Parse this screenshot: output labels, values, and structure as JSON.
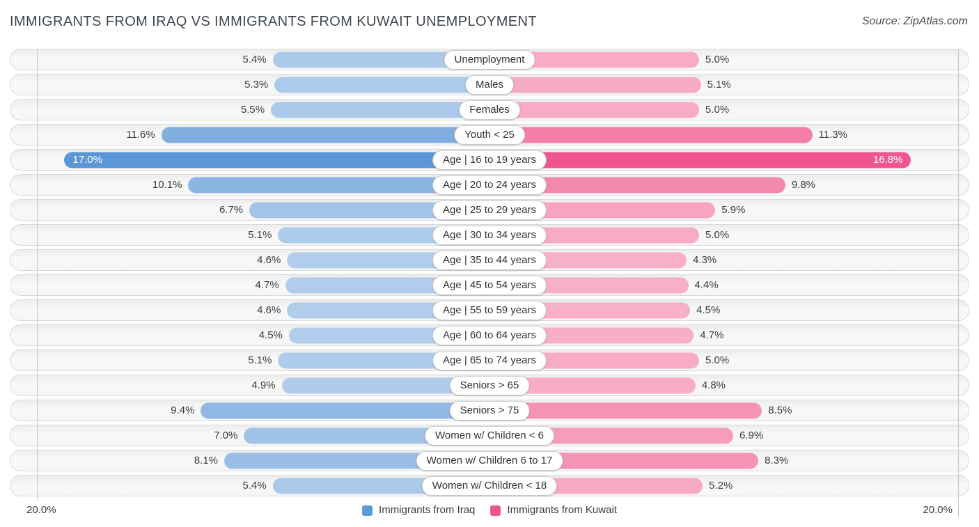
{
  "header": {
    "title": "IMMIGRANTS FROM IRAQ VS IMMIGRANTS FROM KUWAIT UNEMPLOYMENT",
    "source": "Source: ZipAtlas.com"
  },
  "chart_data": {
    "type": "bar",
    "orientation": "diverging-horizontal",
    "title": "Immigrants from Iraq vs Immigrants from Kuwait Unemployment",
    "categories": [
      "Unemployment",
      "Males",
      "Females",
      "Youth < 25",
      "Age | 16 to 19 years",
      "Age | 20 to 24 years",
      "Age | 25 to 29 years",
      "Age | 30 to 34 years",
      "Age | 35 to 44 years",
      "Age | 45 to 54 years",
      "Age | 55 to 59 years",
      "Age | 60 to 64 years",
      "Age | 65 to 74 years",
      "Seniors > 65",
      "Seniors > 75",
      "Women w/ Children < 6",
      "Women w/ Children 6 to 17",
      "Women w/ Children < 18"
    ],
    "series": [
      {
        "name": "Immigrants from Iraq",
        "base_color": "#4689d1",
        "values": [
          5.4,
          5.3,
          5.5,
          11.6,
          17.0,
          10.1,
          6.7,
          5.1,
          4.6,
          4.7,
          4.6,
          4.5,
          5.1,
          4.9,
          9.4,
          7.0,
          8.1,
          5.4
        ]
      },
      {
        "name": "Immigrants from Kuwait",
        "base_color": "#ee3f7d",
        "values": [
          5.0,
          5.1,
          5.0,
          11.3,
          16.8,
          9.8,
          5.9,
          5.0,
          4.3,
          4.4,
          4.5,
          4.7,
          5.0,
          4.8,
          8.5,
          6.9,
          8.3,
          5.2
        ]
      }
    ],
    "axis_max": 20.0,
    "axis_left_label": "20.0%",
    "axis_right_label": "20.0%",
    "value_suffix": "%",
    "grid": true,
    "legend_position": "bottom-center",
    "legend": [
      {
        "label": "Immigrants from Iraq",
        "color": "#5b9bd5"
      },
      {
        "label": "Immigrants from Kuwait",
        "color": "#f0568d"
      }
    ]
  }
}
